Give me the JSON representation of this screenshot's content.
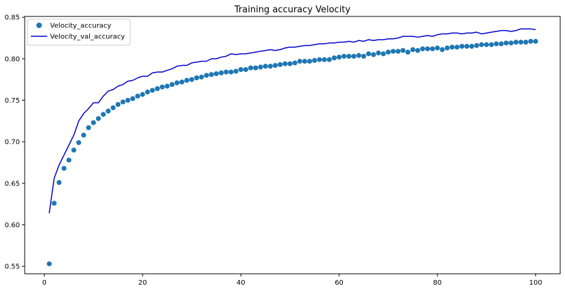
{
  "chart_data": {
    "type": "line",
    "title": "Training accuracy Velocity",
    "xlabel": "",
    "ylabel": "",
    "xlim": [
      -4,
      105
    ],
    "ylim": [
      0.541,
      0.851
    ],
    "x_ticks": [
      0,
      20,
      40,
      60,
      80,
      100
    ],
    "y_ticks": [
      0.55,
      0.6,
      0.65,
      0.7,
      0.75,
      0.8,
      0.85
    ],
    "x_tick_labels": [
      "0",
      "20",
      "40",
      "60",
      "80",
      "100"
    ],
    "y_tick_labels": [
      "0.55",
      "0.60",
      "0.65",
      "0.70",
      "0.75",
      "0.80",
      "0.85"
    ],
    "grid": false,
    "legend_position": "top-left",
    "series": [
      {
        "name": "Velocity_accuracy",
        "style": "markers",
        "color": "#1f77b4",
        "x": [
          1,
          2,
          3,
          4,
          5,
          6,
          7,
          8,
          9,
          10,
          11,
          12,
          13,
          14,
          15,
          16,
          17,
          18,
          19,
          20,
          21,
          22,
          23,
          24,
          25,
          26,
          27,
          28,
          29,
          30,
          31,
          32,
          33,
          34,
          35,
          36,
          37,
          38,
          39,
          40,
          41,
          42,
          43,
          44,
          45,
          46,
          47,
          48,
          49,
          50,
          51,
          52,
          53,
          54,
          55,
          56,
          57,
          58,
          59,
          60,
          61,
          62,
          63,
          64,
          65,
          66,
          67,
          68,
          69,
          70,
          71,
          72,
          73,
          74,
          75,
          76,
          77,
          78,
          79,
          80,
          81,
          82,
          83,
          84,
          85,
          86,
          87,
          88,
          89,
          90,
          91,
          92,
          93,
          94,
          95,
          96,
          97,
          98,
          99,
          100
        ],
        "values": [
          0.553,
          0.626,
          0.651,
          0.668,
          0.678,
          0.69,
          0.699,
          0.708,
          0.717,
          0.723,
          0.728,
          0.733,
          0.737,
          0.741,
          0.745,
          0.748,
          0.75,
          0.752,
          0.755,
          0.757,
          0.76,
          0.762,
          0.764,
          0.766,
          0.767,
          0.769,
          0.771,
          0.772,
          0.774,
          0.775,
          0.777,
          0.778,
          0.78,
          0.781,
          0.782,
          0.783,
          0.784,
          0.784,
          0.785,
          0.787,
          0.787,
          0.789,
          0.789,
          0.79,
          0.791,
          0.791,
          0.792,
          0.793,
          0.794,
          0.794,
          0.795,
          0.797,
          0.797,
          0.797,
          0.798,
          0.799,
          0.799,
          0.799,
          0.801,
          0.802,
          0.803,
          0.803,
          0.803,
          0.804,
          0.803,
          0.806,
          0.805,
          0.807,
          0.806,
          0.808,
          0.809,
          0.809,
          0.81,
          0.808,
          0.811,
          0.81,
          0.812,
          0.812,
          0.812,
          0.813,
          0.811,
          0.813,
          0.814,
          0.814,
          0.815,
          0.815,
          0.815,
          0.816,
          0.817,
          0.817,
          0.817,
          0.818,
          0.818,
          0.819,
          0.819,
          0.82,
          0.82,
          0.82,
          0.821,
          0.821
        ]
      },
      {
        "name": "Velocity_val_accuracy",
        "style": "line",
        "color": "#0000cc",
        "x": [
          1,
          2,
          3,
          4,
          5,
          6,
          7,
          8,
          9,
          10,
          11,
          12,
          13,
          14,
          15,
          16,
          17,
          18,
          19,
          20,
          21,
          22,
          23,
          24,
          25,
          26,
          27,
          28,
          29,
          30,
          31,
          32,
          33,
          34,
          35,
          36,
          37,
          38,
          39,
          40,
          41,
          42,
          43,
          44,
          45,
          46,
          47,
          48,
          49,
          50,
          51,
          52,
          53,
          54,
          55,
          56,
          57,
          58,
          59,
          60,
          61,
          62,
          63,
          64,
          65,
          66,
          67,
          68,
          69,
          70,
          71,
          72,
          73,
          74,
          75,
          76,
          77,
          78,
          79,
          80,
          81,
          82,
          83,
          84,
          85,
          86,
          87,
          88,
          89,
          90,
          91,
          92,
          93,
          94,
          95,
          96,
          97,
          98,
          99,
          100
        ],
        "values": [
          0.614,
          0.656,
          0.672,
          0.684,
          0.696,
          0.708,
          0.725,
          0.734,
          0.74,
          0.747,
          0.747,
          0.755,
          0.761,
          0.763,
          0.767,
          0.769,
          0.773,
          0.774,
          0.777,
          0.779,
          0.779,
          0.783,
          0.784,
          0.784,
          0.786,
          0.788,
          0.791,
          0.792,
          0.792,
          0.795,
          0.796,
          0.797,
          0.797,
          0.8,
          0.8,
          0.802,
          0.803,
          0.806,
          0.805,
          0.806,
          0.806,
          0.807,
          0.808,
          0.809,
          0.81,
          0.811,
          0.81,
          0.811,
          0.813,
          0.814,
          0.814,
          0.815,
          0.816,
          0.816,
          0.817,
          0.818,
          0.818,
          0.819,
          0.819,
          0.82,
          0.82,
          0.821,
          0.82,
          0.822,
          0.821,
          0.823,
          0.822,
          0.823,
          0.823,
          0.824,
          0.824,
          0.825,
          0.827,
          0.827,
          0.827,
          0.826,
          0.827,
          0.828,
          0.827,
          0.829,
          0.83,
          0.83,
          0.831,
          0.831,
          0.83,
          0.831,
          0.831,
          0.832,
          0.83,
          0.831,
          0.832,
          0.833,
          0.834,
          0.834,
          0.833,
          0.834,
          0.836,
          0.836,
          0.836,
          0.835
        ]
      }
    ]
  }
}
